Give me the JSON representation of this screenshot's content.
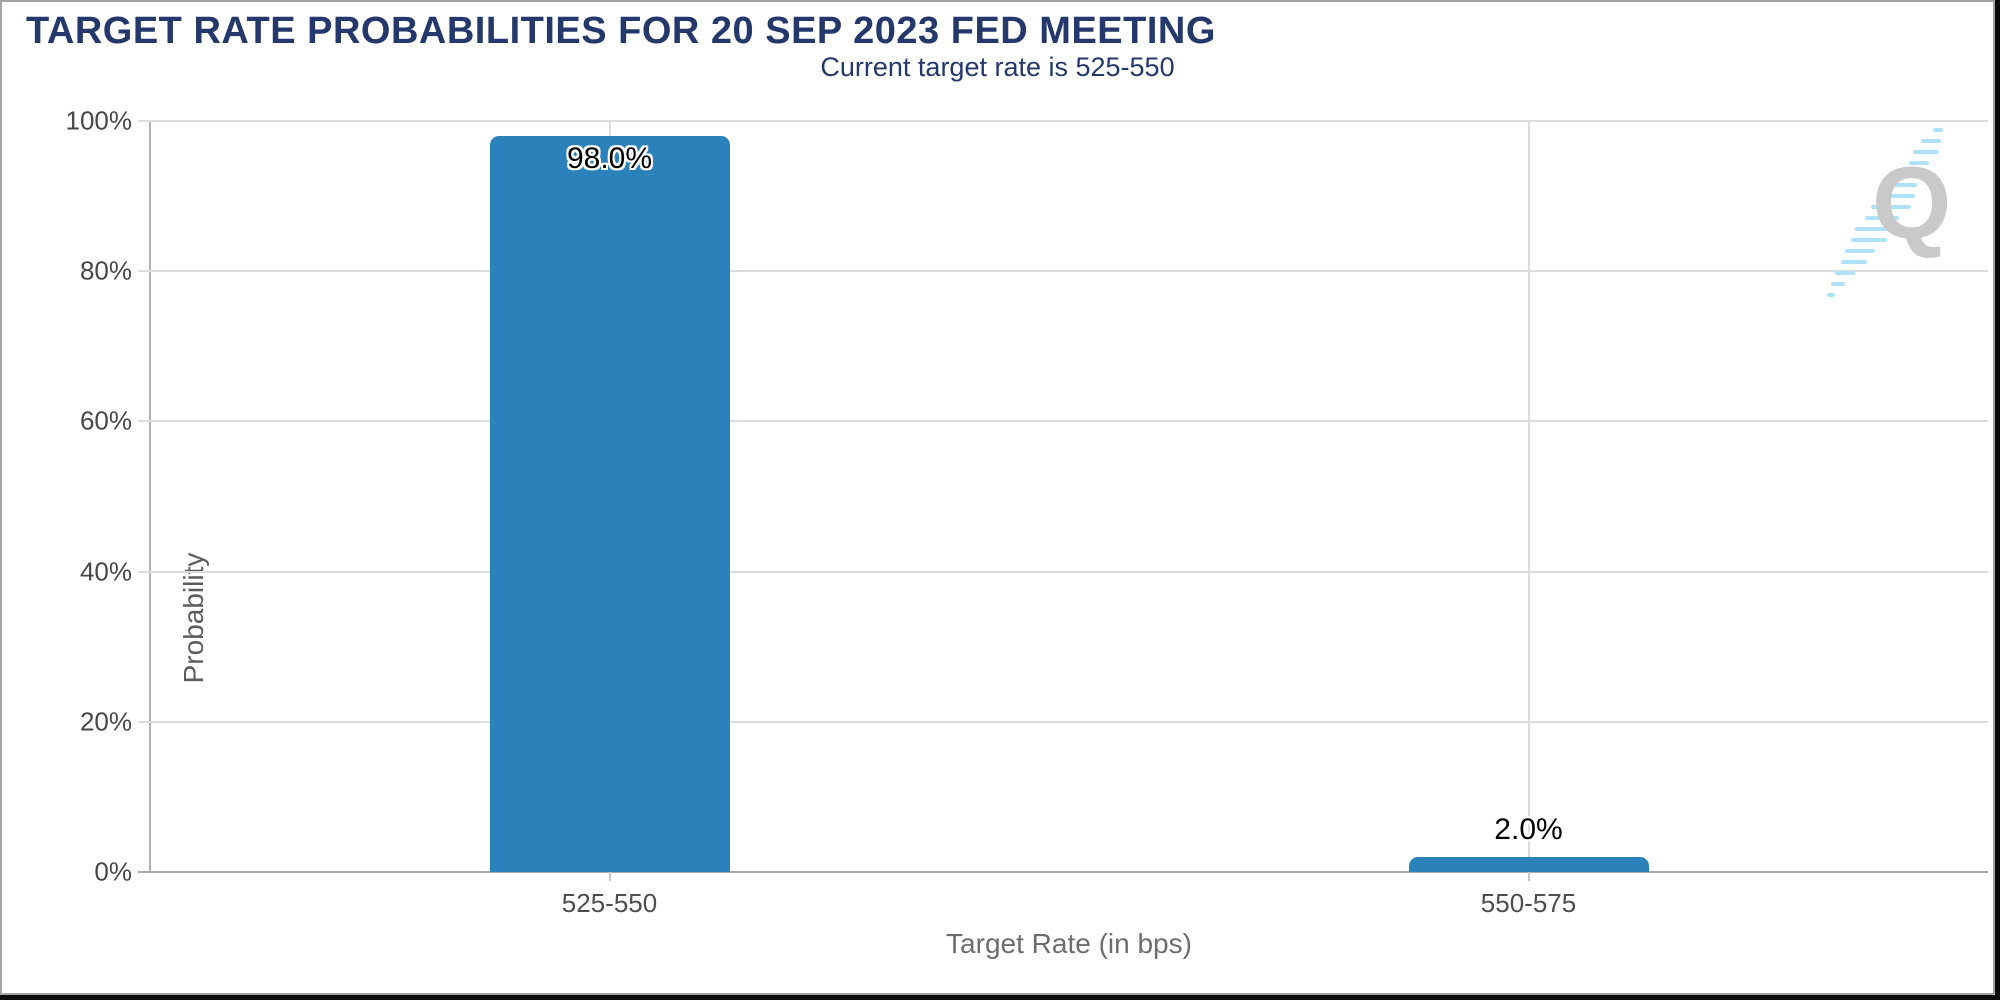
{
  "chart_data": {
    "type": "bar",
    "title": "TARGET RATE PROBABILITIES FOR 20 SEP 2023 FED MEETING",
    "subtitle": "Current target rate is 525-550",
    "xlabel": "Target Rate (in bps)",
    "ylabel": "Probability",
    "categories": [
      "525-550",
      "550-575"
    ],
    "values": [
      98.0,
      2.0
    ],
    "value_labels": [
      "98.0%",
      "2.0%"
    ],
    "ylim": [
      0,
      100
    ],
    "yticks": [
      0,
      20,
      40,
      60,
      80,
      100
    ],
    "ytick_labels": [
      "0%",
      "20%",
      "40%",
      "60%",
      "80%",
      "100%"
    ],
    "bar_color": "#2b81ba",
    "grid": true,
    "legend": false
  },
  "watermark": {
    "letter": "Q",
    "letter_color": "#c9c9c9",
    "stripe_color": "#aee2fa"
  },
  "colors": {
    "title_navy": "#24386b",
    "grid_line": "#dcdcdc",
    "axis_line": "#a9a9a9",
    "tick_text": "#4d4d4d"
  }
}
